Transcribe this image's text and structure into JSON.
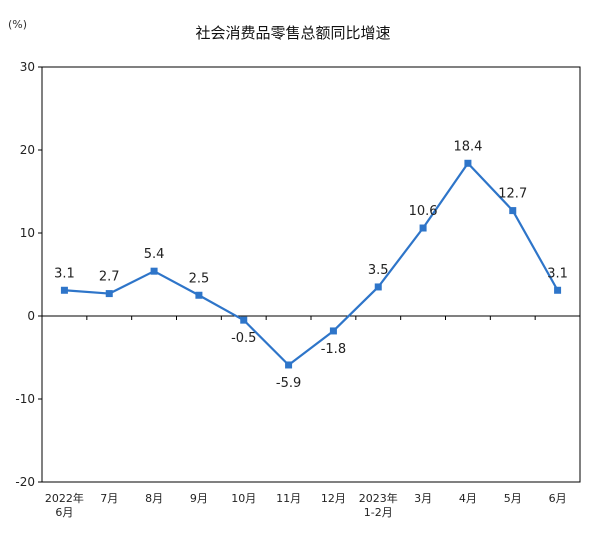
{
  "chart_data": {
    "type": "line",
    "title": "社会消费品零售总额同比增速",
    "unit": "(%)",
    "categories": [
      [
        "2022年",
        "6月"
      ],
      [
        "7月"
      ],
      [
        "8月"
      ],
      [
        "9月"
      ],
      [
        "10月"
      ],
      [
        "11月"
      ],
      [
        "12月"
      ],
      [
        "2023年",
        "1-2月"
      ],
      [
        "3月"
      ],
      [
        "4月"
      ],
      [
        "5月"
      ],
      [
        "6月"
      ]
    ],
    "series": [
      {
        "values": [
          3.1,
          2.7,
          5.4,
          2.5,
          -0.5,
          -5.9,
          -1.8,
          3.5,
          10.6,
          18.4,
          12.7,
          3.1
        ],
        "labels": [
          "3.1",
          "2.7",
          "5.4",
          "2.5",
          "-0.5",
          "-5.9",
          "-1.8",
          "3.5",
          "10.6",
          "18.4",
          "12.7",
          "3.1"
        ]
      }
    ],
    "ylim": [
      -20,
      30
    ],
    "yticks": [
      -20,
      -10,
      0,
      10,
      20,
      30
    ],
    "xlabel": "",
    "ylabel": "",
    "grid": false,
    "legend": "none",
    "colors": {
      "line": "#2e75c9",
      "marker": "#2e75c9",
      "axis": "#000000"
    }
  }
}
